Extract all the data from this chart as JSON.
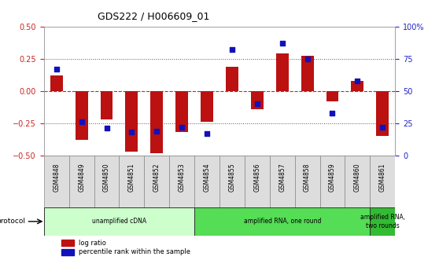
{
  "title": "GDS222 / H006609_01",
  "samples": [
    "GSM4848",
    "GSM4849",
    "GSM4850",
    "GSM4851",
    "GSM4852",
    "GSM4853",
    "GSM4854",
    "GSM4855",
    "GSM4856",
    "GSM4857",
    "GSM4858",
    "GSM4859",
    "GSM4860",
    "GSM4861"
  ],
  "log_ratio": [
    0.12,
    -0.38,
    -0.22,
    -0.47,
    -0.48,
    -0.32,
    -0.24,
    0.19,
    -0.14,
    0.29,
    0.27,
    -0.08,
    0.08,
    -0.35
  ],
  "percentile": [
    67,
    26,
    21,
    18,
    19,
    22,
    17,
    82,
    40,
    87,
    75,
    33,
    58,
    22
  ],
  "ylim_left": [
    -0.5,
    0.5
  ],
  "ylim_right": [
    0,
    100
  ],
  "yticks_left": [
    -0.5,
    -0.25,
    0.0,
    0.25,
    0.5
  ],
  "yticks_right": [
    0,
    25,
    50,
    75,
    100
  ],
  "hlines_dotted": [
    -0.25,
    0.25
  ],
  "bar_color": "#bb1111",
  "dot_color": "#1111bb",
  "protocol_groups": [
    {
      "label": "unamplified cDNA",
      "start": 0,
      "end": 5,
      "color": "#ccffcc"
    },
    {
      "label": "amplified RNA, one round",
      "start": 6,
      "end": 12,
      "color": "#55dd55"
    },
    {
      "label": "amplified RNA,\ntwo rounds",
      "start": 13,
      "end": 13,
      "color": "#33bb33"
    }
  ],
  "protocol_label": "protocol",
  "legend_items": [
    {
      "label": "log ratio",
      "color": "#bb1111"
    },
    {
      "label": "percentile rank within the sample",
      "color": "#1111bb"
    }
  ],
  "background_color": "#ffffff",
  "tick_color_left": "#cc2222",
  "tick_color_right": "#2222cc",
  "bar_width": 0.5,
  "dot_size": 25
}
